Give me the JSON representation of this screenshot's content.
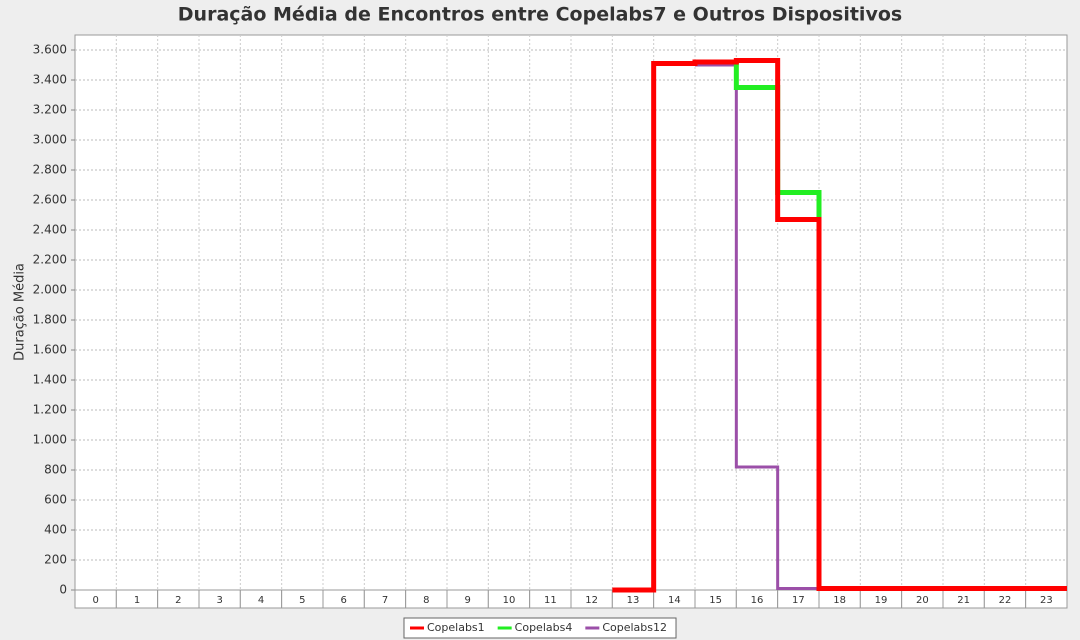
{
  "chart_data": {
    "type": "step",
    "title": "Duração Média de Encontros entre Copelabs7 e Outros Dispositivos",
    "y_label": "Duração Média",
    "categories": [
      "0",
      "1",
      "2",
      "3",
      "4",
      "5",
      "6",
      "7",
      "8",
      "9",
      "10",
      "11",
      "12",
      "13",
      "14",
      "15",
      "16",
      "17",
      "18",
      "19",
      "20",
      "21",
      "22",
      "23"
    ],
    "ylim": [
      0,
      3700
    ],
    "yticks": [
      0,
      200,
      400,
      600,
      800,
      {
        "value": 1000,
        "label": "1.000"
      },
      {
        "value": 1200,
        "label": "1.200"
      },
      {
        "value": 1400,
        "label": "1.400"
      },
      {
        "value": 1600,
        "label": "1.600"
      },
      {
        "value": 1800,
        "label": "1.800"
      },
      {
        "value": 2000,
        "label": "2.000"
      },
      {
        "value": 2200,
        "label": "2.200"
      },
      {
        "value": 2400,
        "label": "2.400"
      },
      {
        "value": 2600,
        "label": "2.600"
      },
      {
        "value": 2800,
        "label": "2.800"
      },
      {
        "value": 3000,
        "label": "3.000"
      },
      {
        "value": 3200,
        "label": "3.200"
      },
      {
        "value": 3400,
        "label": "3.400"
      },
      {
        "value": 3600,
        "label": "3.600"
      }
    ],
    "grid": true,
    "series": [
      {
        "name": "Copelabs1",
        "color": "#ff0000",
        "values": [
          null,
          null,
          null,
          null,
          null,
          null,
          null,
          null,
          null,
          null,
          null,
          null,
          null,
          0,
          3510,
          3520,
          3530,
          2470,
          10,
          10,
          10,
          10,
          10,
          10
        ]
      },
      {
        "name": "Copelabs4",
        "color": "#22ee22",
        "values": [
          null,
          null,
          null,
          null,
          null,
          null,
          null,
          null,
          null,
          null,
          null,
          null,
          null,
          null,
          3510,
          3520,
          3350,
          2650,
          10,
          10,
          10,
          10,
          10,
          10
        ]
      },
      {
        "name": "Copelabs12",
        "color": "#9b4fa8",
        "values": [
          null,
          null,
          null,
          null,
          null,
          null,
          null,
          null,
          null,
          null,
          null,
          null,
          null,
          null,
          null,
          3500,
          820,
          10,
          10,
          10,
          10,
          10,
          10,
          10
        ]
      }
    ]
  }
}
